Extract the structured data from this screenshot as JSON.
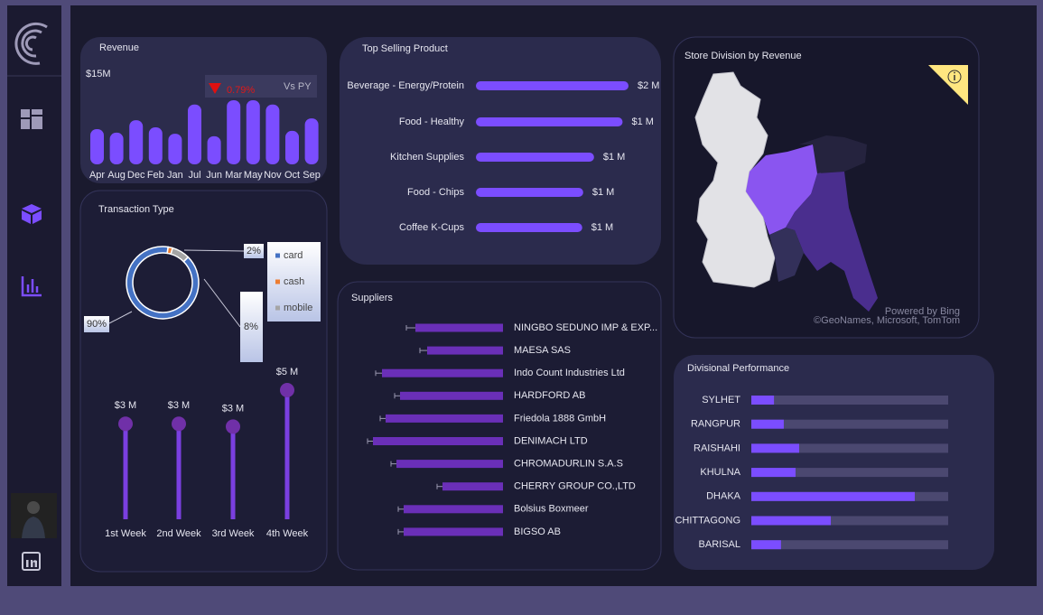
{
  "chart_data": [
    {
      "type": "bar",
      "title": "Revenue",
      "kpi": "$15M",
      "change": "0.79%",
      "comparison": "Vs PY",
      "categories": [
        "Apr",
        "Aug",
        "Dec",
        "Feb",
        "Jan",
        "Jul",
        "Jun",
        "Mar",
        "May",
        "Nov",
        "Oct",
        "Sep"
      ],
      "values": [
        0.99,
        0.89,
        1.24,
        1.04,
        0.86,
        1.68,
        0.79,
        1.8,
        1.8,
        1.68,
        0.94,
        1.29
      ],
      "color": "#7b4dff"
    },
    {
      "type": "donut",
      "title": "Transaction Type",
      "categories": [
        "card",
        "cash",
        "mobile"
      ],
      "values": [
        90,
        2,
        8
      ],
      "value_labels": [
        "90%",
        "2%",
        "8%"
      ],
      "colors": [
        "#4472c4",
        "#ed7d31",
        "#a5a5a5"
      ],
      "legend": "right"
    },
    {
      "type": "lollipop",
      "categories": [
        "1st Week",
        "2nd Week",
        "3rd Week",
        "4th Week"
      ],
      "values": [
        3.4,
        3.4,
        3.3,
        4.6
      ],
      "value_labels": [
        "$3 M",
        "$3 M",
        "$3 M",
        "$5 M"
      ],
      "color": "#7a3fe0"
    },
    {
      "type": "hbar",
      "title": "Top Selling Product",
      "categories": [
        "Beverage - Energy/Protein",
        "Food - Healthy",
        "Kitchen Supplies",
        "Food - Chips",
        "Coffee K-Cups"
      ],
      "values": [
        1.55,
        1.49,
        1.2,
        1.09,
        1.08
      ],
      "value_labels": [
        "$2 M",
        "$1 M",
        "$1 M",
        "$1 M",
        "$1 M"
      ],
      "color": "#7b4dff"
    },
    {
      "type": "hbar-error",
      "title": "Suppliers",
      "categories": [
        "NINGBO SEDUNO IMP & EXP...",
        "MAESA SAS",
        "Indo Count Industries Ltd",
        "HARDFORD AB",
        "Friedola 1888 GmbH",
        "DENIMACH LTD",
        "CHROMADURLIN S.A.S",
        "CHERRY GROUP CO.,LTD",
        "Bolsius Boxmeer",
        "BIGSO AB"
      ],
      "values": [
        0.97,
        0.84,
        1.34,
        1.14,
        1.3,
        1.44,
        1.18,
        0.67,
        1.1,
        1.1
      ],
      "errors": [
        0.1,
        0.08,
        0.07,
        0.06,
        0.06,
        0.06,
        0.06,
        0.06,
        0.06,
        0.06
      ],
      "color": "#6a2fb8"
    },
    {
      "type": "progress",
      "title": "Divisional Performance",
      "categories": [
        "SYLHET",
        "RANGPUR",
        "RAISHAHI",
        "KHULNA",
        "DHAKA",
        "CHITTAGONG",
        "BARISAL"
      ],
      "values": [
        0.81,
        1.16,
        1.71,
        1.58,
        5.84,
        2.84,
        1.06
      ],
      "color": "#7b4dff",
      "track_color": "#4b4870"
    },
    {
      "type": "map",
      "title": "Store Division by Revenue",
      "credits": [
        "Powered by Bing",
        "©GeoNames, Microsoft, TomTom"
      ]
    }
  ]
}
